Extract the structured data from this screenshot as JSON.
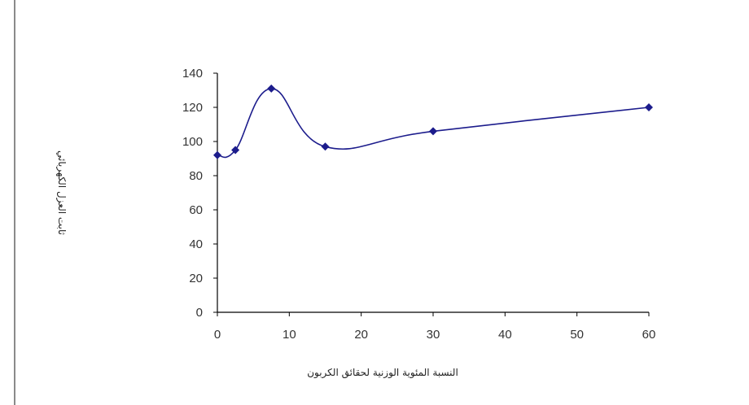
{
  "chart_data": {
    "type": "line",
    "title": "",
    "xlabel": "النسبة المئوية الوزنية لحقائق الكربون",
    "ylabel": "ثابت العزل الكهربائي",
    "x_ticks": [
      "0",
      "10",
      "20",
      "30",
      "40",
      "50",
      "60"
    ],
    "y_ticks": [
      "0",
      "20",
      "40",
      "60",
      "80",
      "100",
      "120",
      "140"
    ],
    "xlim": [
      0,
      60
    ],
    "ylim": [
      0,
      140
    ],
    "grid": false,
    "legend": "none",
    "series": [
      {
        "color": "#1c1c8c",
        "marker": "diamond",
        "smooth": true,
        "points": [
          {
            "x": 0,
            "y": 92
          },
          {
            "x": 2.5,
            "y": 95
          },
          {
            "x": 7.5,
            "y": 131
          },
          {
            "x": 15,
            "y": 97
          },
          {
            "x": 30,
            "y": 106
          },
          {
            "x": 60,
            "y": 120
          }
        ]
      }
    ]
  }
}
